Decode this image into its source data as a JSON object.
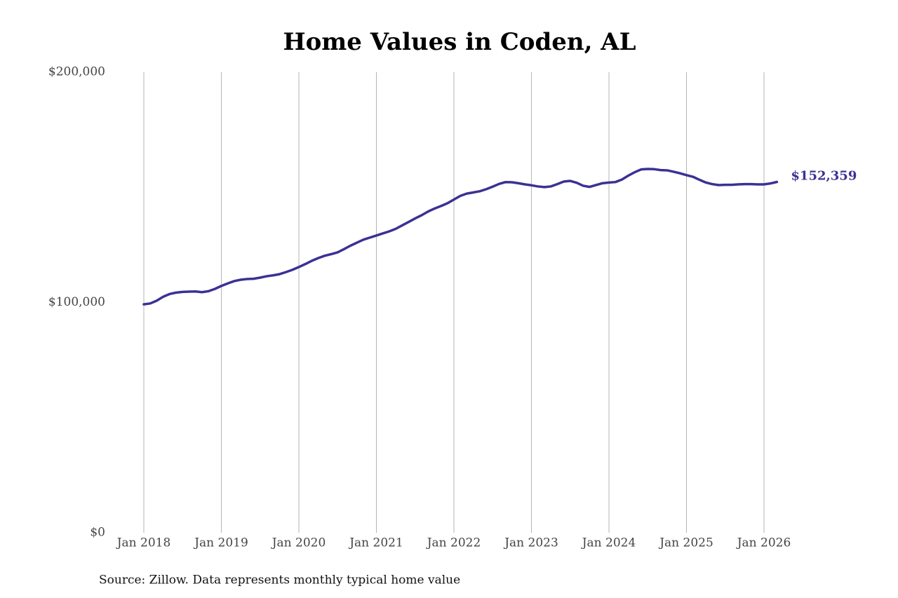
{
  "chart_data": {
    "type": "line",
    "title": "Home Values in Coden, AL",
    "source": "Source: Zillow. Data represents monthly typical home value",
    "color": "#3b3194",
    "grid": true,
    "categories": [
      "Jan 2018",
      null,
      null,
      null,
      null,
      null,
      null,
      null,
      null,
      null,
      null,
      null,
      "Jan 2019",
      null,
      null,
      null,
      null,
      null,
      null,
      null,
      null,
      null,
      null,
      null,
      "Jan 2020",
      null,
      null,
      null,
      null,
      null,
      null,
      null,
      null,
      null,
      null,
      null,
      "Jan 2021",
      null,
      null,
      null,
      null,
      null,
      null,
      null,
      null,
      null,
      null,
      null,
      "Jan 2022",
      null,
      null,
      null,
      null,
      null,
      null,
      null,
      null,
      null,
      null,
      null,
      "Jan 2023",
      null,
      null,
      null,
      null,
      null,
      null,
      null,
      null,
      null,
      null,
      null,
      "Jan 2024",
      null,
      null,
      null,
      null,
      null,
      null,
      null,
      null,
      null,
      null,
      null,
      "Jan 2025",
      null,
      null,
      null,
      null,
      null,
      null,
      null,
      null,
      null,
      null,
      null,
      "Jan 2026",
      null,
      null
    ],
    "values": [
      99200,
      99600,
      100800,
      102500,
      103700,
      104300,
      104600,
      104700,
      104800,
      104500,
      104900,
      105900,
      107200,
      108300,
      109300,
      109900,
      110200,
      110300,
      110800,
      111400,
      111800,
      112300,
      113200,
      114200,
      115400,
      116700,
      118100,
      119300,
      120300,
      121000,
      121800,
      123200,
      124700,
      126000,
      127300,
      128200,
      129100,
      130000,
      130900,
      132000,
      133500,
      135000,
      136500,
      137900,
      139500,
      140800,
      141900,
      143100,
      144700,
      146300,
      147300,
      147800,
      148300,
      149200,
      150300,
      151500,
      152300,
      152200,
      151800,
      151300,
      150900,
      150400,
      150100,
      150400,
      151400,
      152500,
      152800,
      152000,
      150700,
      150200,
      151000,
      151800,
      152100,
      152300,
      153400,
      155100,
      156600,
      157800,
      158000,
      157900,
      157500,
      157400,
      156800,
      156100,
      155300,
      154600,
      153300,
      152100,
      151400,
      151000,
      151100,
      151100,
      151300,
      151400,
      151400,
      151300,
      151300,
      151700,
      152359
    ],
    "value_labels": [
      null,
      null,
      null,
      null,
      null,
      null,
      null,
      null,
      null,
      null,
      null,
      null,
      null,
      null,
      null,
      null,
      null,
      null,
      null,
      null,
      null,
      null,
      null,
      null,
      null,
      null,
      null,
      null,
      null,
      null,
      null,
      null,
      null,
      null,
      null,
      null,
      null,
      null,
      null,
      null,
      null,
      null,
      null,
      null,
      null,
      null,
      null,
      null,
      null,
      null,
      null,
      null,
      null,
      null,
      null,
      null,
      null,
      null,
      null,
      null,
      null,
      null,
      null,
      null,
      null,
      null,
      null,
      null,
      null,
      null,
      null,
      null,
      null,
      null,
      null,
      null,
      null,
      null,
      null,
      null,
      null,
      null,
      null,
      null,
      null,
      null,
      null,
      null,
      null,
      null,
      null,
      null,
      null,
      null,
      null,
      null,
      null,
      null,
      "$152,359"
    ],
    "ylim": [
      0,
      200000
    ],
    "yticks": [
      {
        "value": 0,
        "label": "$0"
      },
      {
        "value": 100000,
        "label": "$100,000"
      },
      {
        "value": 200000,
        "label": "$200,000"
      }
    ]
  }
}
